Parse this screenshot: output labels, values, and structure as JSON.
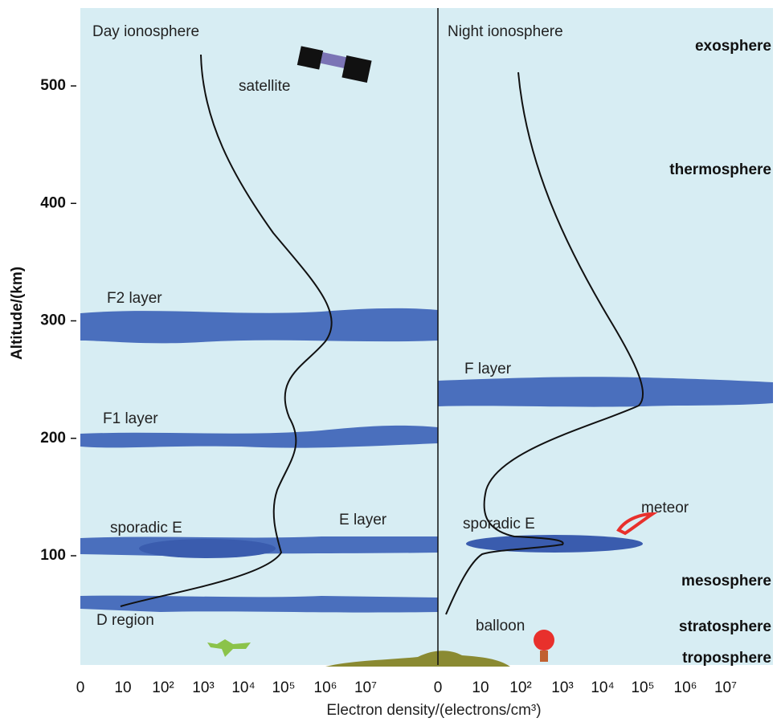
{
  "y_axis": {
    "label": "Altitude/(km)",
    "ticks": [
      100,
      200,
      300,
      400,
      500
    ]
  },
  "x_axis": {
    "label": "Electron density/(electrons/cm³)",
    "left_ticks": [
      "0",
      "10",
      "10²",
      "10³",
      "10⁴",
      "10⁵",
      "10⁶",
      "10⁷"
    ],
    "right_ticks": [
      "0",
      "10",
      "10²",
      "10³",
      "10⁴",
      "10⁵",
      "10⁶",
      "10⁷"
    ]
  },
  "day_panel": {
    "title": "Day ionosphere",
    "satellite": "satellite",
    "f2": "F2 layer",
    "f1": "F1 layer",
    "sporadic_e": "sporadic E",
    "e": "E layer",
    "d": "D region"
  },
  "night_panel": {
    "title": "Night ionosphere",
    "f": "F layer",
    "sporadic_e": "sporadic E",
    "meteor": "meteor",
    "balloon": "balloon"
  },
  "atmosphere": [
    "exosphere",
    "thermosphere",
    "mesosphere",
    "stratosphere",
    "troposphere"
  ]
}
